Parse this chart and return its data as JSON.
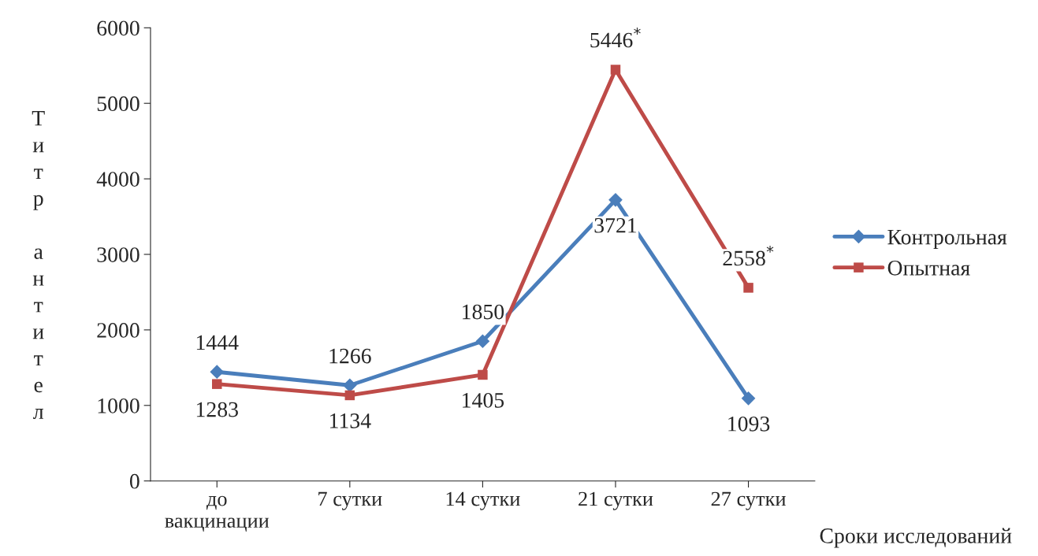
{
  "chart_data": {
    "type": "line",
    "xlabel": "Сроки исследований",
    "ylabel": "Титр антител",
    "categories": [
      "до\nвакцинации",
      "7 сутки",
      "14 сутки",
      "21 сутки",
      "27 сутки"
    ],
    "series": [
      {
        "name": "Контрольная",
        "color": "#4a7ebb",
        "marker": "diamond",
        "values": [
          1444,
          1266,
          1850,
          3721,
          1093
        ],
        "value_labels": [
          "1444",
          "1266",
          "1850",
          "3721",
          "1093"
        ]
      },
      {
        "name": "Опытная",
        "color": "#be4b48",
        "marker": "square",
        "values": [
          1283,
          1134,
          1405,
          5446,
          2558
        ],
        "value_labels": [
          "1283",
          "1134",
          "1405",
          "5446$^{*}$",
          "2558$^{*}$"
        ]
      }
    ],
    "ylim": [
      0,
      6000
    ],
    "yticks": [
      0,
      1000,
      2000,
      3000,
      4000,
      5000,
      6000
    ],
    "grid": false,
    "legend": "right",
    "line_style": "solid"
  }
}
